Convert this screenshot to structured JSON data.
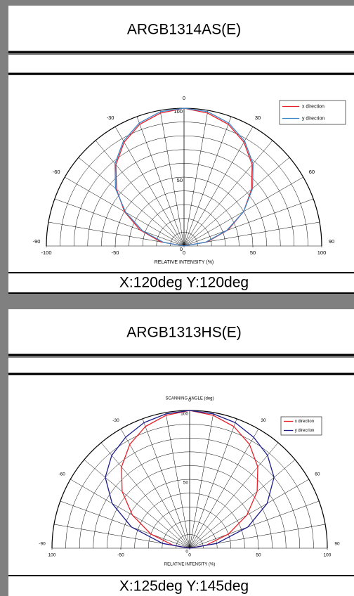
{
  "chart_data": [
    {
      "type": "polar",
      "title": "ARGB1314AS(E)",
      "caption": "X:120deg  Y:120deg",
      "xlabel": "RELATIVE INTENSITY (%)",
      "theta": [
        -90,
        -80,
        -70,
        -60,
        -50,
        -40,
        -30,
        -20,
        -10,
        0,
        10,
        20,
        30,
        40,
        50,
        60,
        70,
        80,
        90
      ],
      "series": [
        {
          "name": "x direction",
          "color": "#e8202a",
          "values": [
            0,
            17,
            34,
            50,
            64,
            77,
            87,
            94,
            98,
            100,
            98,
            94,
            87,
            77,
            64,
            50,
            34,
            17,
            0
          ]
        },
        {
          "name": "y direcrion",
          "color": "#3a86c8",
          "values": [
            0,
            15,
            32,
            49,
            65,
            78,
            88,
            95,
            99,
            100,
            99,
            95,
            88,
            78,
            65,
            50,
            33,
            16,
            0
          ]
        }
      ],
      "thetalim": [
        -90,
        90
      ],
      "rlim": [
        0,
        100
      ],
      "thetaticks": [
        -90,
        -60,
        -30,
        0,
        30,
        60,
        90
      ],
      "xticks": [
        -100,
        -50,
        0,
        50,
        100
      ],
      "yticks": [
        0,
        50,
        100
      ],
      "theta_grid_step": 10,
      "r_grid_step": 10,
      "legend": "upper right"
    },
    {
      "type": "polar",
      "title": "ARGB1313HS(E)",
      "caption": "X:125deg  Y:145deg",
      "xlabel": "RELATIVE INTENSITY (%)",
      "toplabel": "SCANNING ANGLE (deg)",
      "theta": [
        -90,
        -80,
        -70,
        -60,
        -50,
        -40,
        -30,
        -20,
        -10,
        0,
        10,
        20,
        30,
        40,
        50,
        60,
        70,
        80,
        90
      ],
      "series": [
        {
          "name": "x direction",
          "color": "#e8202a",
          "values": [
            0,
            12,
            30,
            48,
            64,
            77,
            87,
            94,
            98,
            100,
            98,
            94,
            87,
            77,
            64,
            48,
            30,
            12,
            0
          ]
        },
        {
          "name": "y direcrion",
          "color": "#1c1c8c",
          "values": [
            0,
            20,
            45,
            65,
            80,
            88,
            93,
            97,
            99,
            100,
            99,
            97,
            93,
            88,
            80,
            65,
            45,
            20,
            0
          ]
        }
      ],
      "thetalim": [
        -90,
        90
      ],
      "rlim": [
        0,
        100
      ],
      "thetaticks": [
        -90,
        -60,
        -30,
        0,
        30,
        60,
        90
      ],
      "xticks": [
        {
          "value": -100,
          "label": "100"
        },
        -50,
        0,
        50,
        100
      ],
      "yticks": [
        0,
        50,
        100
      ],
      "theta_grid_step": 10,
      "r_grid_step": 10,
      "legend": "upper right"
    }
  ]
}
